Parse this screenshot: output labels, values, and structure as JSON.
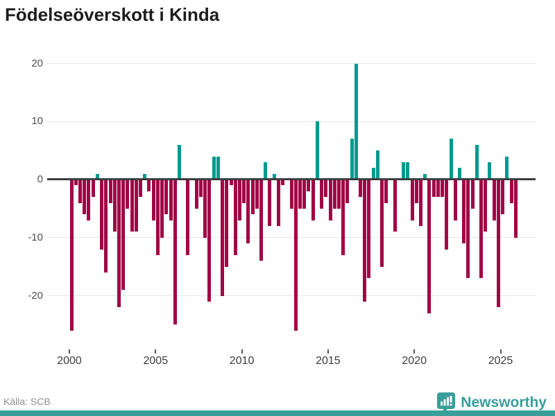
{
  "title": "Födelseöverskott i Kinda",
  "source": "Källa: SCB",
  "branding": {
    "name": "Newsworthy",
    "icon": "newsworthy-bubble-chart-icon",
    "brand_color": "#3a9e9a"
  },
  "colors": {
    "positive_bar": "#00998f",
    "negative_bar": "#a00545",
    "zero_line": "#3d3d3d",
    "gridline": "#e4e4e4",
    "bottom_strip": "#3a9e9a"
  },
  "chart_data": {
    "type": "bar",
    "title": "Födelseöverskott i Kinda",
    "xlabel": "",
    "ylabel": "",
    "x_start": "2000 Q1",
    "x_end": "2025 Q4",
    "x_frequency": "quarterly",
    "values": [
      -26,
      -1,
      -4,
      -6,
      -7,
      -3,
      1,
      -12,
      -16,
      -4,
      -9,
      -22,
      -19,
      -5,
      -9,
      -9,
      -3,
      1,
      -2,
      -7,
      -13,
      -10,
      -6,
      -7,
      -25,
      6,
      0,
      -13,
      0,
      -5,
      -3,
      -10,
      -21,
      4,
      4,
      -20,
      -15,
      -1,
      -13,
      -7,
      -4,
      -11,
      -6,
      -5,
      -14,
      3,
      -8,
      1,
      -8,
      -1,
      0,
      -5,
      -26,
      -5,
      -5,
      -2,
      -7,
      10,
      -5,
      -3,
      -7,
      -5,
      -5,
      -13,
      -4,
      7,
      20,
      -3,
      -21,
      -17,
      2,
      5,
      -15,
      -4,
      0,
      -9,
      0,
      3,
      3,
      -7,
      -4,
      -8,
      1,
      -23,
      -3,
      -3,
      -3,
      -12,
      7,
      -7,
      2,
      -11,
      -17,
      -5,
      6,
      -17,
      -9,
      3,
      -7,
      -22,
      -6,
      4,
      -4,
      -10
    ],
    "yticks": [
      -20,
      -10,
      0,
      10,
      20
    ],
    "xticks": [
      2000,
      2005,
      2010,
      2015,
      2020,
      2025
    ],
    "ylim": [
      -27,
      21.5
    ],
    "grid": true,
    "legend": false
  }
}
